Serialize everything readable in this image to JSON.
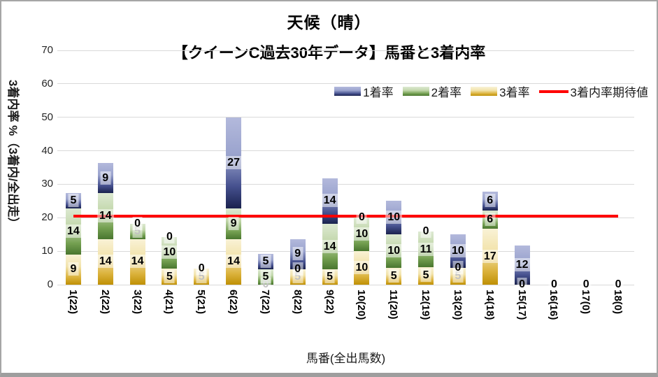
{
  "window": {
    "background": "#ffffff",
    "frame_color": "#a6a6a6"
  },
  "chart_data": {
    "type": "bar",
    "stacked": true,
    "title": "天候（晴）",
    "subtitle": "【クイーンC過去30年データ】馬番と3着内率",
    "xlabel": "馬番(全出馬数)",
    "ylabel": "3着内率 %（3着内/全出走）",
    "ylim": [
      0,
      70
    ],
    "yticks": [
      0,
      10,
      20,
      30,
      40,
      50,
      60,
      70
    ],
    "grid": true,
    "legend_position": "top-right",
    "legend": [
      "1着率",
      "2着率",
      "3着率",
      "3着内率期待値"
    ],
    "categories": [
      "1(22)",
      "2(22)",
      "3(22)",
      "4(21)",
      "5(21)",
      "6(22)",
      "7(22)",
      "8(22)",
      "9(22)",
      "10(20)",
      "11(20)",
      "12(19)",
      "13(20)",
      "14(18)",
      "15(17)",
      "16(16)",
      "17(0)",
      "18(0)"
    ],
    "series": [
      {
        "name": "3着率",
        "color": "#d6ad3a",
        "gradient": [
          "#f9f2d6",
          "#f2e3ab",
          "#dbb23c",
          "#bf9005"
        ],
        "values": [
          9.09,
          13.64,
          13.64,
          4.76,
          4.76,
          13.64,
          0,
          4.55,
          4.55,
          10,
          5,
          5.26,
          5,
          16.67,
          0,
          0,
          0,
          0
        ],
        "labels": [
          "9",
          "14",
          "14",
          "5",
          "5",
          "14",
          "0",
          "5",
          "5",
          "10",
          "5",
          "5",
          "5",
          "17",
          "0",
          "0",
          "0",
          "0"
        ],
        "muted_labels": [
          0,
          0,
          0,
          0,
          1,
          0,
          1,
          1,
          0,
          0,
          0,
          0,
          1,
          0,
          0,
          0,
          0,
          0
        ]
      },
      {
        "name": "2着率",
        "color": "#74a050",
        "gradient": [
          "#dde9d2",
          "#c2d7ab",
          "#739f50",
          "#49762f"
        ],
        "values": [
          13.64,
          13.64,
          4.55,
          9.52,
          0,
          9.09,
          4.55,
          0,
          13.64,
          10,
          10,
          10.53,
          0,
          5.56,
          0,
          0,
          0,
          0
        ],
        "labels": [
          "14",
          "14",
          "5",
          "10",
          "0",
          "9",
          "5",
          "0",
          "14",
          "10",
          "10",
          "11",
          "0",
          "6",
          "0",
          "0",
          "0",
          "0"
        ],
        "muted_labels": [
          0,
          0,
          1,
          0,
          0,
          0,
          0,
          0,
          0,
          0,
          0,
          0,
          0,
          0,
          0,
          0,
          0,
          0
        ]
      },
      {
        "name": "1着率",
        "color": "#5a66a6",
        "gradient": [
          "#b3b9dc",
          "#9ba4ce",
          "#45508e",
          "#1a224e"
        ],
        "values": [
          4.55,
          9.09,
          0,
          0,
          0,
          27.27,
          4.55,
          9.09,
          13.64,
          0,
          10,
          0,
          10,
          5.56,
          11.76,
          0,
          0,
          0
        ],
        "labels": [
          "5",
          "9",
          "0",
          "0",
          "0",
          "27",
          "5",
          "9",
          "14",
          "0",
          "10",
          "0",
          "10",
          "6",
          "12",
          "0",
          "0",
          "0"
        ],
        "muted_labels": [
          0,
          0,
          0,
          0,
          0,
          0,
          0,
          0,
          0,
          0,
          0,
          0,
          0,
          0,
          0,
          0,
          0,
          0
        ]
      }
    ],
    "line_series": {
      "name": "3着内率期待値",
      "value": 20.4,
      "color": "#ff0000"
    }
  }
}
